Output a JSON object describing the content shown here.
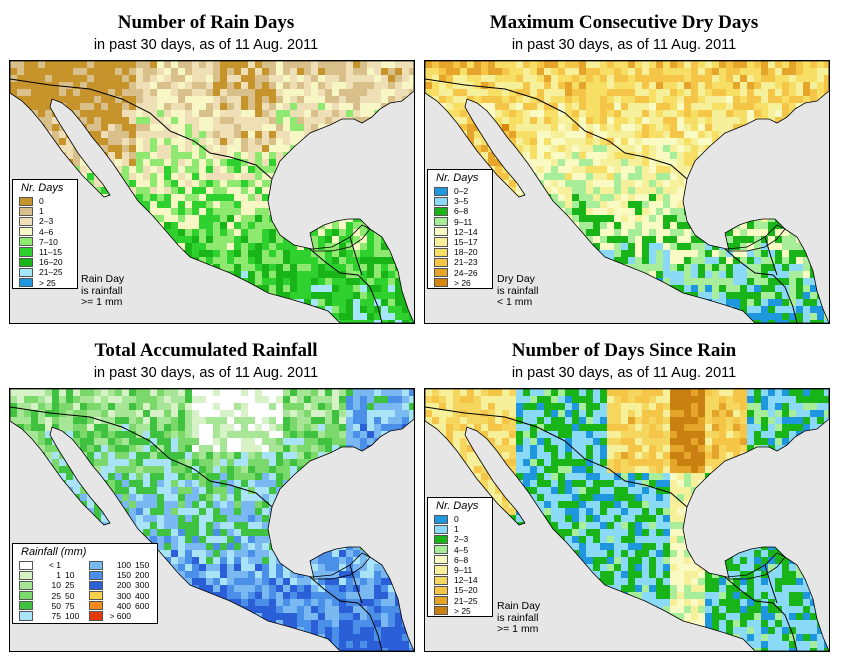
{
  "panels": [
    {
      "title": "Number of Rain Days",
      "subtitle": "in past 30 days, as of  11 Aug. 2011",
      "legend_title": "Nr. Days",
      "legend": [
        {
          "label": "0",
          "color": "#c7932b"
        },
        {
          "label": "1",
          "color": "#d9c08a"
        },
        {
          "label": "2–3",
          "color": "#eedfb6"
        },
        {
          "label": "4–6",
          "color": "#f7f7c6"
        },
        {
          "label": "7–10",
          "color": "#8fe870"
        },
        {
          "label": "11–15",
          "color": "#2ed12e"
        },
        {
          "label": "16–20",
          "color": "#18b418"
        },
        {
          "label": "21–25",
          "color": "#a6e6fa"
        },
        {
          "label": "> 25",
          "color": "#1f97df"
        }
      ],
      "note": [
        "Rain Day",
        "is rainfall",
        ">= 1 mm"
      ]
    },
    {
      "title": "Maximum Consecutive Dry Days",
      "subtitle": "in past 30 days, as of  11 Aug. 2011",
      "legend_title": "Nr. Days",
      "legend": [
        {
          "label": "0–2",
          "color": "#1f97df"
        },
        {
          "label": "3–5",
          "color": "#8ad9f7"
        },
        {
          "label": "6–8",
          "color": "#18b418"
        },
        {
          "label": "9–11",
          "color": "#a7ed9a"
        },
        {
          "label": "12–14",
          "color": "#fafac4"
        },
        {
          "label": "15–17",
          "color": "#f7f09a"
        },
        {
          "label": "18–20",
          "color": "#f7df66"
        },
        {
          "label": "21–23",
          "color": "#f5c548"
        },
        {
          "label": "24–26",
          "color": "#e5a52a"
        },
        {
          "label": "> 26",
          "color": "#d9860c"
        }
      ],
      "note": [
        "Dry Day",
        "is rainfall",
        "< 1 mm"
      ]
    },
    {
      "title": "Total Accumulated Rainfall",
      "subtitle": "in past 30 days, as of  11 Aug. 2011",
      "legend_title": "Rainfall (mm)",
      "legend_left": [
        {
          "a": "< 1",
          "b": "",
          "color": "#ffffff"
        },
        {
          "a": "1",
          "b": "10",
          "color": "#d8f2c8"
        },
        {
          "a": "10",
          "b": "25",
          "color": "#a7e597"
        },
        {
          "a": "25",
          "b": "50",
          "color": "#7bd86a"
        },
        {
          "a": "50",
          "b": "75",
          "color": "#3fc23f"
        },
        {
          "a": "75",
          "b": "100",
          "color": "#a8e3f7"
        }
      ],
      "legend_right": [
        {
          "a": "100",
          "b": "150",
          "color": "#7ab8f2"
        },
        {
          "a": "150",
          "b": "200",
          "color": "#4a8fe8"
        },
        {
          "a": "200",
          "b": "300",
          "color": "#2a5fd8"
        },
        {
          "a": "300",
          "b": "400",
          "color": "#f7d24a"
        },
        {
          "a": "400",
          "b": "600",
          "color": "#f08a1a"
        },
        {
          "a": "> 600",
          "b": "",
          "color": "#e63a0a"
        }
      ]
    },
    {
      "title": "Number of Days Since Rain",
      "subtitle": "in past 30 days, as of  11 Aug. 2011",
      "legend_title": "Nr. Days",
      "legend": [
        {
          "label": "0",
          "color": "#1f97df"
        },
        {
          "label": "1",
          "color": "#8ad9f7"
        },
        {
          "label": "2–3",
          "color": "#18b418"
        },
        {
          "label": "4–5",
          "color": "#a7ed9a"
        },
        {
          "label": "6–8",
          "color": "#fafac4"
        },
        {
          "label": "9–11",
          "color": "#f7f09a"
        },
        {
          "label": "12–14",
          "color": "#f5d760"
        },
        {
          "label": "15–20",
          "color": "#f5c548"
        },
        {
          "label": "21–25",
          "color": "#e5a52a"
        },
        {
          "label": "> 25",
          "color": "#c98010"
        }
      ],
      "note": [
        "Rain Day",
        "is rainfall",
        ">= 1 mm"
      ]
    }
  ]
}
